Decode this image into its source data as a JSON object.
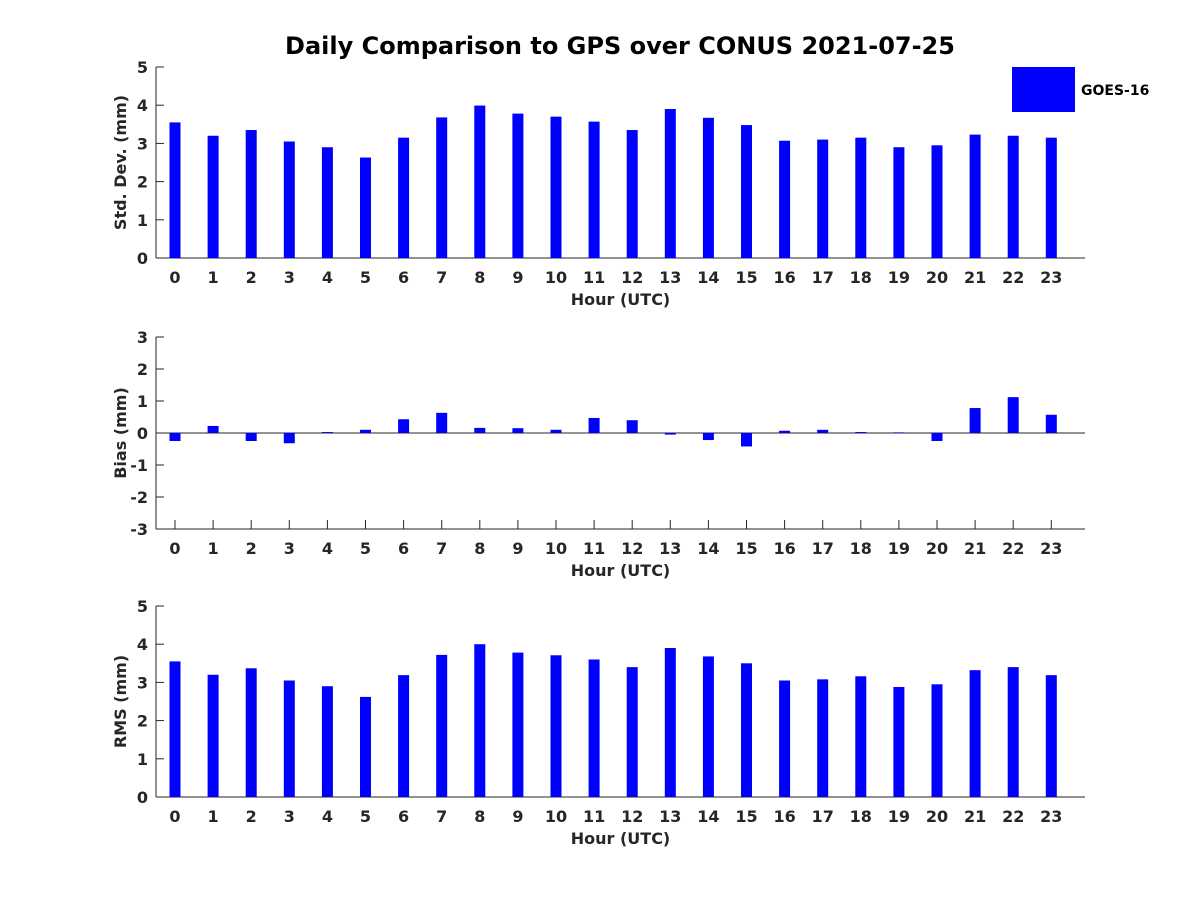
{
  "title": "Daily Comparison to GPS over CONUS 2021-07-25",
  "legend": {
    "label": "GOES-16",
    "color": "#0000ff",
    "placement": "top-right"
  },
  "chart_data": [
    {
      "type": "bar",
      "name": "std-dev",
      "xlabel": "Hour (UTC)",
      "ylabel": "Std. Dev. (mm)",
      "ylim": [
        0,
        5
      ],
      "yticks": [
        "0",
        "1",
        "2",
        "3",
        "4",
        "5"
      ],
      "categories": [
        "0",
        "1",
        "2",
        "3",
        "4",
        "5",
        "6",
        "7",
        "8",
        "9",
        "10",
        "11",
        "12",
        "13",
        "14",
        "15",
        "16",
        "17",
        "18",
        "19",
        "20",
        "21",
        "22",
        "23"
      ],
      "series": [
        {
          "name": "GOES-16",
          "values": [
            3.55,
            3.2,
            3.35,
            3.05,
            2.9,
            2.63,
            3.15,
            3.68,
            3.99,
            3.78,
            3.7,
            3.57,
            3.35,
            3.9,
            3.67,
            3.48,
            3.07,
            3.1,
            3.15,
            2.9,
            2.95,
            3.23,
            3.2,
            3.15
          ]
        }
      ]
    },
    {
      "type": "bar",
      "name": "bias",
      "xlabel": "Hour (UTC)",
      "ylabel": "Bias (mm)",
      "ylim": [
        -3,
        3
      ],
      "yticks": [
        "-3",
        "-2",
        "-1",
        "0",
        "1",
        "2",
        "3"
      ],
      "categories": [
        "0",
        "1",
        "2",
        "3",
        "4",
        "5",
        "6",
        "7",
        "8",
        "9",
        "10",
        "11",
        "12",
        "13",
        "14",
        "15",
        "16",
        "17",
        "18",
        "19",
        "20",
        "21",
        "22",
        "23"
      ],
      "series": [
        {
          "name": "GOES-16",
          "values": [
            -0.25,
            0.22,
            -0.25,
            -0.32,
            0.03,
            0.1,
            0.43,
            0.63,
            0.16,
            0.15,
            0.1,
            0.47,
            0.4,
            -0.05,
            -0.22,
            -0.42,
            0.07,
            0.1,
            0.03,
            0.02,
            -0.25,
            0.78,
            1.12,
            0.57
          ]
        }
      ]
    },
    {
      "type": "bar",
      "name": "rms",
      "xlabel": "Hour (UTC)",
      "ylabel": "RMS (mm)",
      "ylim": [
        0,
        5
      ],
      "yticks": [
        "0",
        "1",
        "2",
        "3",
        "4",
        "5"
      ],
      "categories": [
        "0",
        "1",
        "2",
        "3",
        "4",
        "5",
        "6",
        "7",
        "8",
        "9",
        "10",
        "11",
        "12",
        "13",
        "14",
        "15",
        "16",
        "17",
        "18",
        "19",
        "20",
        "21",
        "22",
        "23"
      ],
      "series": [
        {
          "name": "GOES-16",
          "values": [
            3.55,
            3.2,
            3.37,
            3.05,
            2.9,
            2.62,
            3.19,
            3.72,
            4.0,
            3.78,
            3.71,
            3.6,
            3.4,
            3.9,
            3.68,
            3.5,
            3.05,
            3.08,
            3.16,
            2.88,
            2.95,
            3.32,
            3.4,
            3.19
          ]
        }
      ]
    }
  ]
}
